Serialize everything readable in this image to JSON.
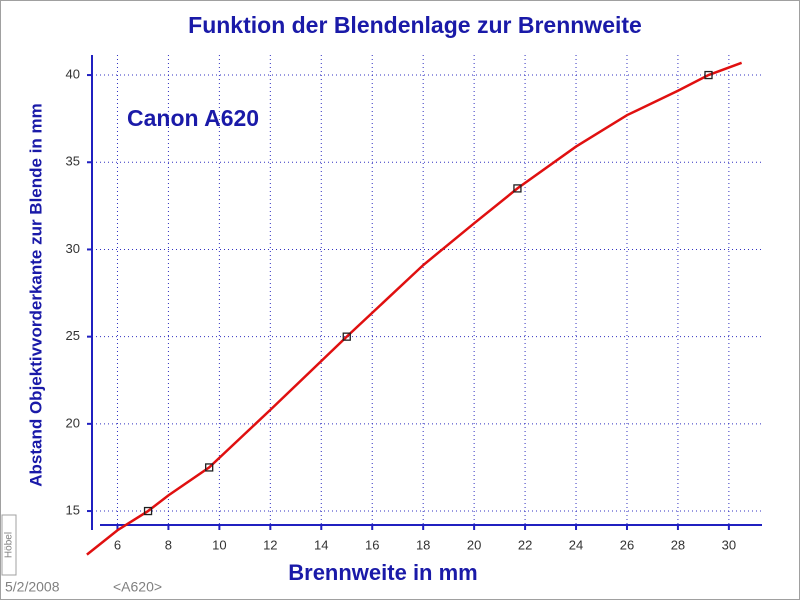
{
  "chart_data": {
    "type": "line",
    "title": "Funktion der Blendenlage zur Brennweite",
    "annotation": "Canon A620",
    "x_label": "Brennweite in mm",
    "y_label": "Abstand Objektivvorderkante zur Blende in mm",
    "xlim": [
      5,
      31.3
    ],
    "ylim": [
      14.2,
      41.15
    ],
    "xticks": [
      6,
      8,
      10,
      12,
      14,
      16,
      18,
      20,
      22,
      24,
      26,
      28,
      30
    ],
    "yticks": [
      15,
      20,
      25,
      30,
      35,
      40
    ],
    "grid": true,
    "series": [
      {
        "type": "line",
        "color": "#e01010",
        "x": [
          4.8,
          6,
          7.2,
          8,
          9.6,
          12,
          15,
          18,
          20,
          21.7,
          24,
          26,
          28,
          29.2,
          30.5
        ],
        "values": [
          12.5,
          13.9,
          15,
          15.9,
          17.5,
          20.8,
          25,
          29.1,
          31.5,
          33.5,
          35.9,
          37.7,
          39.1,
          40,
          40.7
        ]
      },
      {
        "type": "scatter",
        "color": "#202020",
        "x": [
          7.2,
          9.6,
          15,
          21.7,
          29.2
        ],
        "values": [
          15,
          17.5,
          25,
          33.5,
          40
        ]
      }
    ]
  },
  "footer": {
    "date": "5/2/2008",
    "tag": "<A620>",
    "author": "Höbel"
  }
}
